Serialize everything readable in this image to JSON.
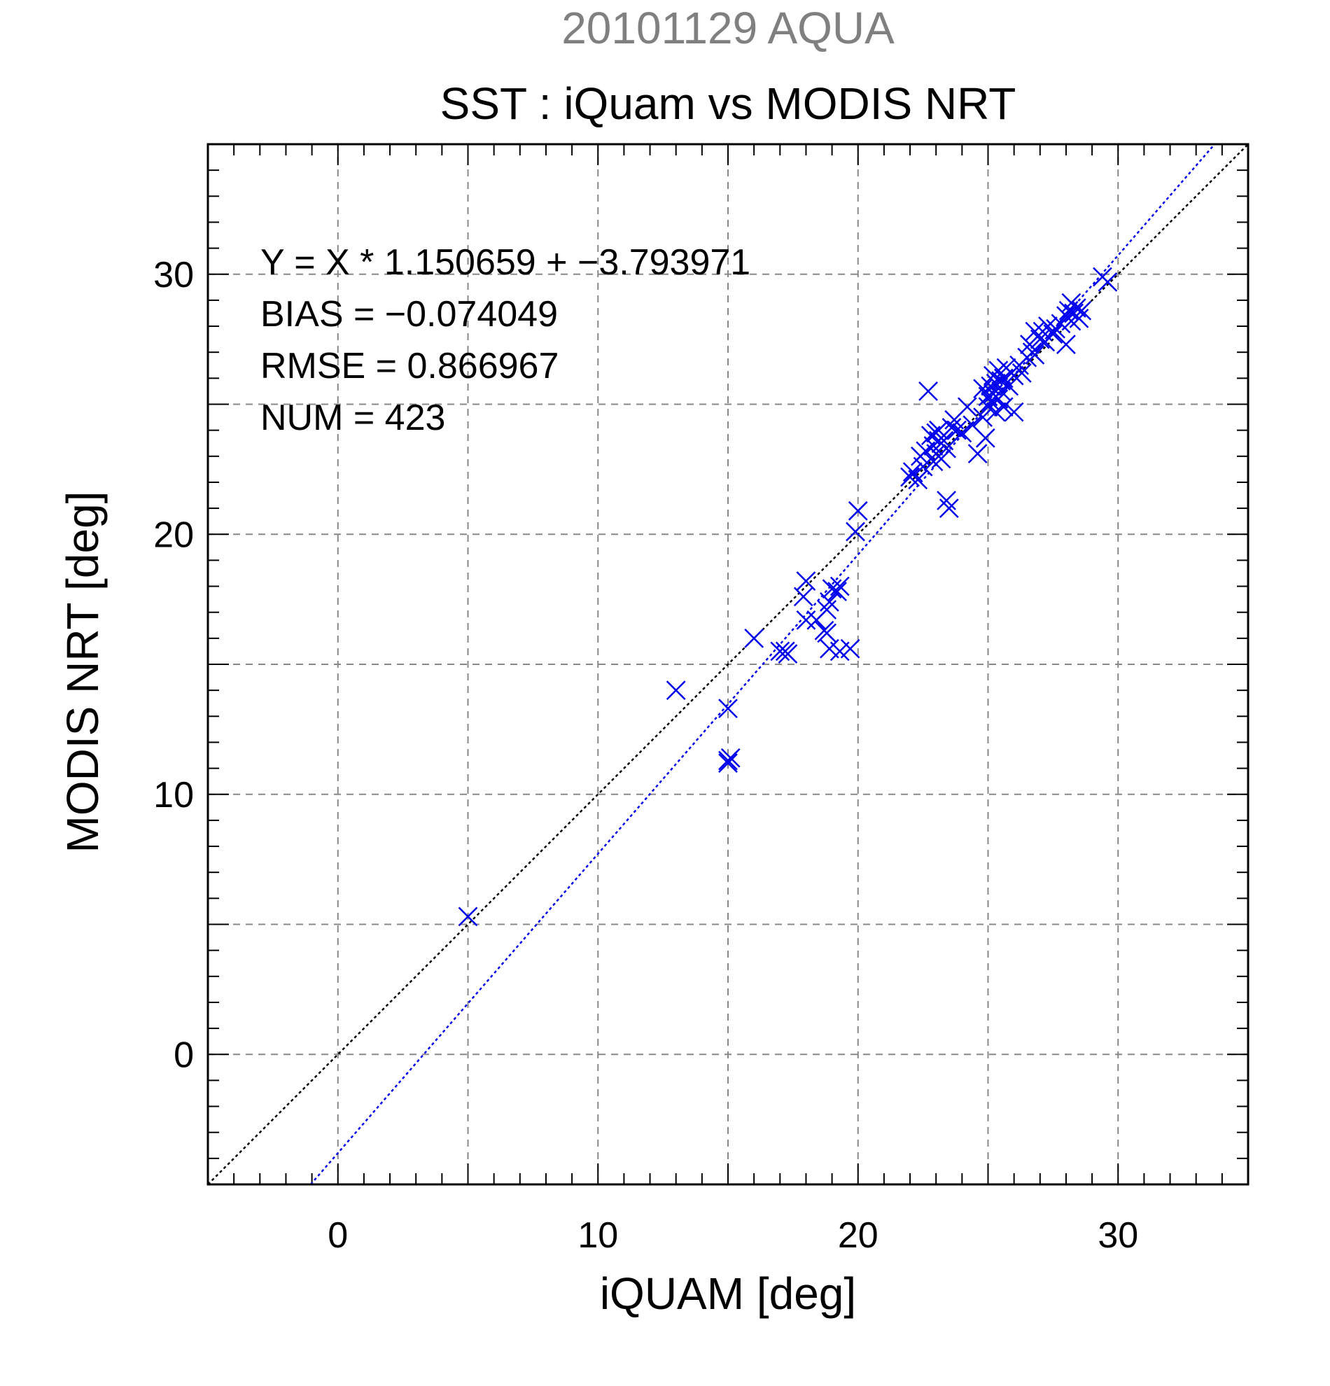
{
  "chart_data": {
    "type": "scatter",
    "title": "20101129 AQUA",
    "subtitle": "SST : iQuam vs MODIS NRT",
    "xlabel": "iQUAM [deg]",
    "ylabel": "MODIS NRT [deg]",
    "xlim": [
      -5,
      35
    ],
    "ylim": [
      -5,
      35
    ],
    "xticks": [
      0,
      10,
      20,
      30
    ],
    "yticks": [
      0,
      10,
      20,
      30
    ],
    "grid_step": 5,
    "minor_step": 1,
    "grid": true,
    "annotations": [
      "Y = X * 1.150659 + −3.793971",
      "BIAS = −0.074049",
      "RMSE = 0.866967",
      "NUM = 423"
    ],
    "regression": {
      "slope": 1.150659,
      "intercept": -3.793971,
      "color": "#0000ee"
    },
    "identity_line": {
      "color": "#000000"
    },
    "marker_color": "#0000ee",
    "x": [
      5.0,
      13.0,
      15.0,
      15.0,
      15.0,
      15.1,
      16.0,
      17.0,
      17.2,
      17.3,
      18.0,
      17.9,
      18.0,
      18.4,
      18.7,
      18.8,
      18.8,
      18.9,
      18.9,
      19.0,
      19.2,
      19.3,
      19.3,
      19.7,
      19.9,
      20.0,
      22.0,
      22.1,
      22.3,
      22.4,
      22.5,
      22.6,
      22.7,
      22.8,
      22.9,
      22.9,
      23.0,
      23.0,
      23.1,
      23.1,
      23.2,
      23.2,
      23.3,
      23.4,
      23.4,
      23.5,
      23.6,
      23.7,
      23.8,
      24.0,
      24.2,
      24.4,
      24.6,
      24.8,
      24.8,
      24.9,
      25.0,
      25.0,
      25.1,
      25.1,
      25.2,
      25.2,
      25.3,
      25.3,
      25.4,
      25.4,
      25.5,
      25.5,
      25.6,
      25.6,
      25.7,
      25.8,
      25.9,
      26.0,
      26.0,
      26.2,
      26.3,
      26.5,
      26.6,
      26.7,
      26.8,
      26.8,
      27.0,
      27.1,
      27.2,
      27.3,
      27.5,
      27.6,
      27.8,
      28.0,
      28.0,
      28.1,
      28.2,
      28.2,
      28.3,
      28.4,
      28.5,
      28.6,
      29.4,
      29.6
    ],
    "y": [
      5.3,
      14.0,
      13.3,
      11.3,
      11.2,
      11.4,
      16.0,
      15.5,
      15.5,
      15.4,
      18.2,
      17.6,
      16.7,
      16.7,
      16.3,
      17.1,
      16.2,
      17.4,
      15.6,
      17.9,
      17.8,
      15.5,
      18.0,
      15.6,
      20.1,
      20.9,
      22.2,
      22.4,
      22.1,
      23.0,
      22.6,
      23.2,
      25.5,
      23.8,
      23.4,
      22.8,
      23.9,
      23.1,
      23.6,
      24.0,
      23.5,
      22.9,
      23.6,
      23.3,
      21.3,
      21.0,
      24.1,
      24.4,
      24.0,
      23.9,
      24.9,
      24.2,
      23.1,
      25.6,
      24.5,
      23.7,
      25.3,
      24.9,
      25.7,
      25.1,
      26.1,
      25.4,
      24.7,
      25.8,
      25.2,
      26.3,
      25.9,
      25.5,
      26.0,
      24.9,
      26.4,
      25.7,
      26.2,
      26.1,
      24.7,
      26.5,
      26.2,
      26.8,
      27.3,
      27.0,
      27.8,
      26.9,
      27.5,
      27.8,
      27.4,
      28.0,
      27.7,
      27.9,
      28.1,
      28.4,
      27.3,
      28.6,
      28.2,
      28.9,
      28.5,
      28.7,
      28.3,
      28.6,
      29.9,
      29.7
    ]
  }
}
